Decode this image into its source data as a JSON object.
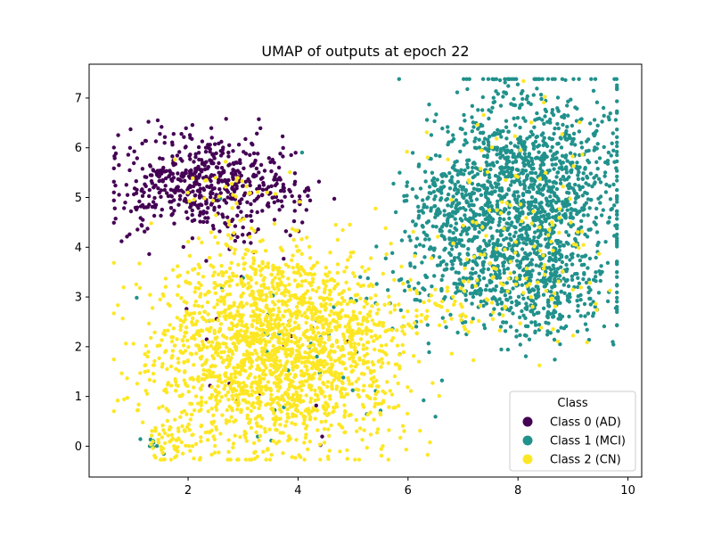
{
  "chart_data": {
    "type": "scatter",
    "title": "UMAP of outputs at epoch 22",
    "xlabel": "",
    "ylabel": "",
    "xlim": [
      0.2,
      10.25
    ],
    "ylim": [
      -0.62,
      7.68
    ],
    "x_ticks": [
      2,
      4,
      6,
      8,
      10
    ],
    "y_ticks": [
      0,
      1,
      2,
      3,
      4,
      5,
      6,
      7
    ],
    "grid": false,
    "legend": {
      "title": "Class",
      "placement": "lower-right",
      "entries": [
        "Class 0 (AD)",
        "Class 1 (MCI)",
        "Class 2 (CN)"
      ]
    },
    "colors": [
      "#440154",
      "#21918c",
      "#fde725"
    ],
    "series": [
      {
        "name": "Class 0 (AD)",
        "color": "#440154",
        "clusters": [
          {
            "cx": 2.3,
            "cy": 5.35,
            "sx": 0.75,
            "sy": 0.45,
            "n": 520
          },
          {
            "cx": 3.6,
            "cy": 4.9,
            "sx": 0.35,
            "sy": 0.25,
            "n": 45
          },
          {
            "cx": 1.1,
            "cy": 4.55,
            "sx": 0.2,
            "sy": 0.25,
            "n": 18
          },
          {
            "cx": 2.8,
            "cy": 4.25,
            "sx": 0.25,
            "sy": 0.15,
            "n": 14
          },
          {
            "cx": 3.2,
            "cy": 2.0,
            "sx": 0.9,
            "sy": 1.1,
            "n": 16
          }
        ]
      },
      {
        "name": "Class 1 (MCI)",
        "color": "#21918c",
        "clusters": [
          {
            "cx": 8.15,
            "cy": 5.1,
            "sx": 0.85,
            "sy": 1.05,
            "n": 1400
          },
          {
            "cx": 8.6,
            "cy": 3.0,
            "sx": 0.6,
            "sy": 0.45,
            "n": 220
          },
          {
            "cx": 7.4,
            "cy": 3.7,
            "sx": 0.7,
            "sy": 0.7,
            "n": 260
          },
          {
            "cx": 6.6,
            "cy": 4.7,
            "sx": 0.45,
            "sy": 0.45,
            "n": 130
          },
          {
            "cx": 5.3,
            "cy": 3.1,
            "sx": 0.6,
            "sy": 0.5,
            "n": 25
          },
          {
            "cx": 3.8,
            "cy": 1.8,
            "sx": 1.2,
            "sy": 1.0,
            "n": 30
          },
          {
            "cx": 1.4,
            "cy": 0.05,
            "sx": 0.12,
            "sy": 0.08,
            "n": 8
          }
        ]
      },
      {
        "name": "Class 2 (CN)",
        "color": "#fde725",
        "clusters": [
          {
            "cx": 3.5,
            "cy": 1.8,
            "sx": 1.05,
            "sy": 0.95,
            "n": 1700
          },
          {
            "cx": 3.4,
            "cy": 3.2,
            "sx": 0.6,
            "sy": 0.4,
            "n": 150
          },
          {
            "cx": 4.9,
            "cy": 2.4,
            "sx": 0.5,
            "sy": 0.8,
            "n": 180
          },
          {
            "cx": 1.8,
            "cy": 0.1,
            "sx": 0.3,
            "sy": 0.25,
            "n": 60
          },
          {
            "cx": 6.6,
            "cy": 2.8,
            "sx": 0.5,
            "sy": 0.4,
            "n": 60
          },
          {
            "cx": 8.3,
            "cy": 3.6,
            "sx": 0.7,
            "sy": 0.7,
            "n": 90
          },
          {
            "cx": 2.8,
            "cy": 5.0,
            "sx": 0.6,
            "sy": 0.5,
            "n": 40
          },
          {
            "cx": 7.8,
            "cy": 5.5,
            "sx": 0.9,
            "sy": 0.9,
            "n": 40
          },
          {
            "cx": 5.3,
            "cy": 1.0,
            "sx": 0.4,
            "sy": 0.35,
            "n": 30
          }
        ]
      }
    ]
  }
}
